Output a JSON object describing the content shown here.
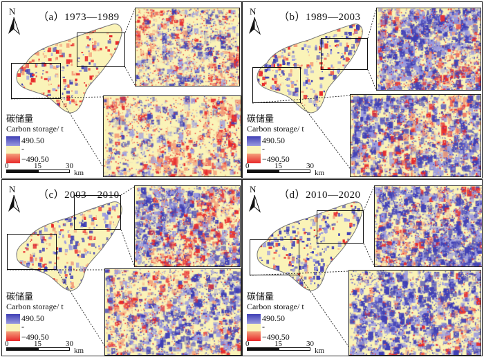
{
  "figure": {
    "panels": [
      {
        "id": "a",
        "title": "（a）1973—1989",
        "mix": [
          0.38,
          0.2,
          0.42
        ],
        "seed": 11
      },
      {
        "id": "b",
        "title": "（b）1989—2003",
        "mix": [
          0.3,
          0.55,
          0.15
        ],
        "seed": 23
      },
      {
        "id": "c",
        "title": "（c）2003—2010",
        "mix": [
          0.3,
          0.42,
          0.28
        ],
        "seed": 37
      },
      {
        "id": "d",
        "title": "（d）2010—2020",
        "mix": [
          0.2,
          0.62,
          0.18
        ],
        "seed": 53
      }
    ],
    "north_label": "N",
    "legend": {
      "title_cn": "碳储量",
      "title_en": "Carbon storage/ t",
      "max_label": "490.50",
      "mid_label": "-",
      "min_label": "−490.50",
      "colors": {
        "high": "#3f3fb5",
        "high_light": "#9b9be0",
        "mid": "#faf3b8",
        "low_light": "#f4a07a",
        "low": "#e8292b"
      }
    },
    "scale_bar": {
      "ticks": [
        "0",
        "15",
        "30"
      ],
      "unit": "km"
    }
  }
}
